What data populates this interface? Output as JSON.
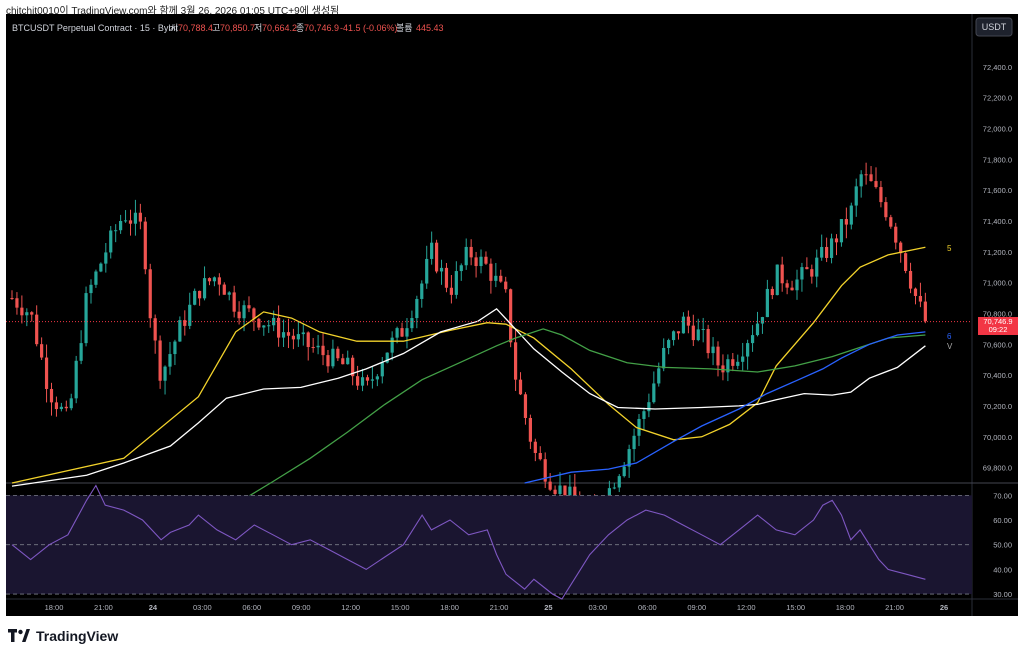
{
  "header": {
    "snapshot": "chitchit0010이 TradingView.com와 함께 3월 26, 2026 01:05 UTC+9에 생성됨",
    "symbol": "BTCUSDT Perpetual Contract · 15 · Bybit",
    "o_label": "시",
    "o_value": "70,788.4",
    "h_label": "고",
    "h_value": "70,850.7",
    "l_label": "저",
    "l_value": "70,664.2",
    "c_label": "종",
    "c_value": "70,746.9",
    "change": "-41.5 (-0.06%)",
    "vol_label": "볼륨",
    "vol_value": "445.43"
  },
  "currency_button": "USDT",
  "price_tag": {
    "value": "70,746.9",
    "countdown": "09:22"
  },
  "side_markers": [
    "5",
    "6",
    "V"
  ],
  "footer": {
    "brand": "TradingView",
    "logo_icon": "tradingview-logo-icon"
  },
  "chart_data": [
    {
      "type": "candlestick",
      "symbol": "BTCUSDT",
      "interval": "15",
      "ylim": [
        69700,
        72600
      ],
      "y_ticks": [
        "72,400.0",
        "72,200.0",
        "72,000.0",
        "71,800.0",
        "71,600.0",
        "71,400.0",
        "71,200.0",
        "71,000.0",
        "70,800.0",
        "70,600.0",
        "70,400.0",
        "70,200.0",
        "70,000.0",
        "69,800.0"
      ],
      "x_ticks": [
        "18:00",
        "21:00",
        "24",
        "03:00",
        "06:00",
        "09:00",
        "12:00",
        "15:00",
        "18:00",
        "21:00",
        "25",
        "03:00",
        "06:00",
        "09:00",
        "12:00",
        "15:00",
        "18:00",
        "21:00",
        "26"
      ],
      "colors": {
        "up": "#26a69a",
        "down": "#ef5350",
        "ma_yellow": "#f2d22b",
        "ma_white": "#ffffff",
        "ma_green": "#43a047",
        "ma_blue": "#2962ff"
      },
      "grid": false,
      "moving_averages": [
        {
          "color": "ma_yellow",
          "points": [
            [
              0,
              69700
            ],
            [
              12,
              69860
            ],
            [
              20,
              70260
            ],
            [
              24,
              70680
            ],
            [
              27,
              70810
            ],
            [
              30,
              70770
            ],
            [
              33,
              70680
            ],
            [
              37,
              70620
            ],
            [
              42,
              70620
            ],
            [
              47,
              70690
            ],
            [
              51,
              70740
            ],
            [
              53,
              70730
            ],
            [
              56,
              70640
            ],
            [
              60,
              70440
            ],
            [
              64,
              70210
            ],
            [
              67,
              70060
            ],
            [
              71,
              69980
            ],
            [
              74,
              70000
            ],
            [
              77,
              70080
            ],
            [
              80,
              70220
            ],
            [
              82,
              70460
            ],
            [
              86,
              70740
            ],
            [
              89,
              70980
            ],
            [
              91,
              71100
            ],
            [
              94,
              71180
            ],
            [
              98,
              71230
            ]
          ]
        },
        {
          "color": "ma_white",
          "points": [
            [
              0,
              69680
            ],
            [
              8,
              69750
            ],
            [
              12,
              69830
            ],
            [
              17,
              69940
            ],
            [
              20,
              70090
            ],
            [
              23,
              70250
            ],
            [
              27,
              70310
            ],
            [
              31,
              70320
            ],
            [
              35,
              70380
            ],
            [
              38,
              70440
            ],
            [
              42,
              70540
            ],
            [
              46,
              70680
            ],
            [
              50,
              70750
            ],
            [
              52,
              70830
            ],
            [
              54,
              70700
            ],
            [
              56,
              70570
            ],
            [
              59,
              70420
            ],
            [
              62,
              70280
            ],
            [
              65,
              70190
            ],
            [
              69,
              70180
            ],
            [
              74,
              70190
            ],
            [
              78,
              70200
            ],
            [
              80,
              70210
            ],
            [
              82,
              70240
            ],
            [
              85,
              70280
            ],
            [
              88,
              70270
            ],
            [
              90,
              70290
            ],
            [
              92,
              70380
            ],
            [
              95,
              70450
            ],
            [
              98,
              70590
            ]
          ]
        },
        {
          "color": "ma_green",
          "points": [
            [
              25,
              69600
            ],
            [
              28,
              69710
            ],
            [
              32,
              69860
            ],
            [
              36,
              70030
            ],
            [
              40,
              70210
            ],
            [
              44,
              70370
            ],
            [
              48,
              70480
            ],
            [
              52,
              70590
            ],
            [
              54,
              70640
            ],
            [
              57,
              70700
            ],
            [
              59,
              70660
            ],
            [
              62,
              70560
            ],
            [
              66,
              70480
            ],
            [
              70,
              70450
            ],
            [
              75,
              70440
            ],
            [
              80,
              70420
            ],
            [
              84,
              70460
            ],
            [
              88,
              70520
            ],
            [
              91,
              70580
            ],
            [
              94,
              70640
            ],
            [
              98,
              70660
            ]
          ]
        },
        {
          "color": "ma_blue",
          "points": [
            [
              55,
              69700
            ],
            [
              60,
              69770
            ],
            [
              64,
              69790
            ],
            [
              67,
              69830
            ],
            [
              71,
              69970
            ],
            [
              74,
              70070
            ],
            [
              78,
              70180
            ],
            [
              81,
              70280
            ],
            [
              84,
              70360
            ],
            [
              87,
              70440
            ],
            [
              89,
              70510
            ],
            [
              92,
              70600
            ],
            [
              95,
              70660
            ],
            [
              98,
              70680
            ]
          ]
        }
      ]
    },
    {
      "type": "line",
      "series": [
        {
          "name": "",
          "color": "#7e57c2"
        }
      ],
      "ylim": [
        28,
        75
      ],
      "y_ticks": [
        "70.00",
        "60.00",
        "50.00",
        "40.00",
        "30.00"
      ],
      "bands": [
        30,
        50,
        70
      ],
      "points": [
        [
          0,
          50
        ],
        [
          2,
          44
        ],
        [
          4,
          50
        ],
        [
          6,
          54
        ],
        [
          8,
          68
        ],
        [
          9,
          74
        ],
        [
          10,
          66
        ],
        [
          12,
          64
        ],
        [
          14,
          60
        ],
        [
          16,
          52
        ],
        [
          17,
          55
        ],
        [
          19,
          58
        ],
        [
          20,
          62
        ],
        [
          22,
          56
        ],
        [
          24,
          52
        ],
        [
          26,
          58
        ],
        [
          28,
          54
        ],
        [
          30,
          50
        ],
        [
          32,
          52
        ],
        [
          34,
          48
        ],
        [
          36,
          44
        ],
        [
          38,
          40
        ],
        [
          40,
          45
        ],
        [
          42,
          50
        ],
        [
          44,
          62
        ],
        [
          45,
          56
        ],
        [
          47,
          60
        ],
        [
          49,
          54
        ],
        [
          51,
          56
        ],
        [
          52,
          46
        ],
        [
          53,
          38
        ],
        [
          55,
          32
        ],
        [
          56,
          36
        ],
        [
          58,
          30
        ],
        [
          59,
          28
        ],
        [
          61,
          40
        ],
        [
          62,
          46
        ],
        [
          64,
          54
        ],
        [
          66,
          60
        ],
        [
          68,
          64
        ],
        [
          70,
          62
        ],
        [
          72,
          58
        ],
        [
          74,
          54
        ],
        [
          76,
          50
        ],
        [
          78,
          56
        ],
        [
          80,
          62
        ],
        [
          82,
          56
        ],
        [
          84,
          54
        ],
        [
          86,
          60
        ],
        [
          87,
          66
        ],
        [
          88,
          68
        ],
        [
          89,
          62
        ],
        [
          90,
          52
        ],
        [
          91,
          56
        ],
        [
          92,
          50
        ],
        [
          93,
          44
        ],
        [
          94,
          40
        ],
        [
          96,
          38
        ],
        [
          98,
          36
        ]
      ]
    }
  ]
}
